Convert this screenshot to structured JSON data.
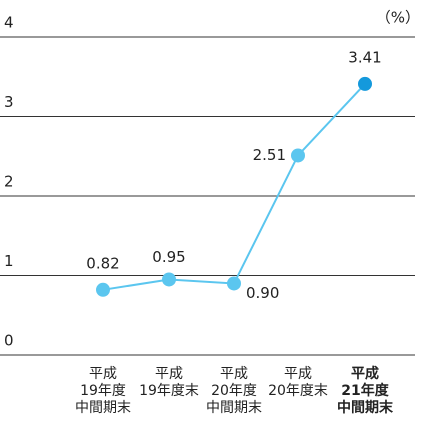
{
  "chart_data": {
    "type": "line",
    "unit": "（%）",
    "categories": [
      [
        "平成",
        "19年度",
        "中間期末"
      ],
      [
        "平成",
        "19年度末"
      ],
      [
        "平成",
        "20年度",
        "中間期末"
      ],
      [
        "平成",
        "20年度末"
      ],
      [
        "平成",
        "21年度",
        "中間期末"
      ]
    ],
    "series": [
      {
        "color": "#5bc6ef",
        "highlight_color": "#1499dc",
        "values": [
          0.82,
          0.95,
          0.9,
          2.51,
          3.41
        ],
        "value_labels": [
          "0.82",
          "0.95",
          "0.90",
          "2.51",
          "3.41"
        ]
      }
    ],
    "highlight": 4,
    "ylim": [
      0,
      4
    ],
    "yticks": [
      0,
      1,
      2,
      3,
      4
    ],
    "grid": true
  }
}
